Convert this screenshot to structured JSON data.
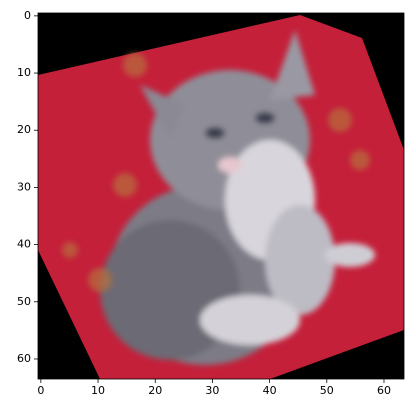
{
  "chart_data": {
    "type": "image",
    "xlim": [
      -0.5,
      63.5
    ],
    "ylim": [
      63.5,
      -0.5
    ],
    "xticks": [
      0,
      10,
      20,
      30,
      40,
      50,
      60
    ],
    "yticks": [
      0,
      10,
      20,
      30,
      40,
      50,
      60
    ]
  }
}
